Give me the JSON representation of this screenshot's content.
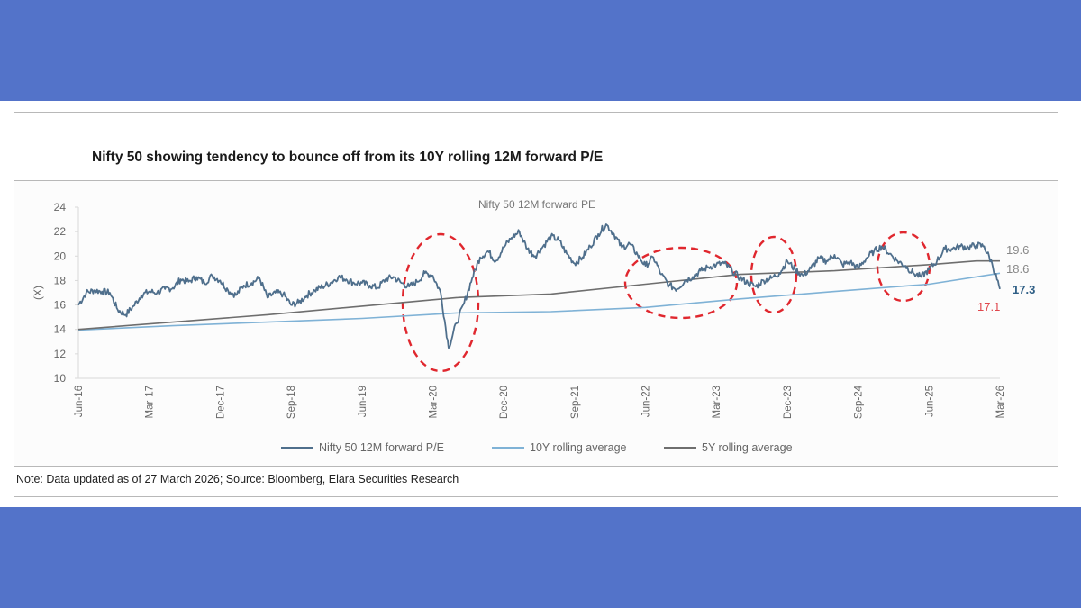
{
  "title": "Nifty 50 showing tendency to bounce off from its 10Y rolling 12M forward P/E",
  "note": "Note: Data updated as of 27 March 2026; Source: Bloomberg, Elara Securities Research",
  "colors": {
    "background": "#5373c9",
    "pe_line": "#4f6f8c",
    "avg10y": "#7fb2d6",
    "avg5y": "#6e6e6e",
    "highlight": "#e0272e",
    "end_label_pe": "#2f5f86",
    "end_label_min": "#e0474d"
  },
  "chart_data": {
    "type": "line",
    "title": "Nifty 50 12M forward PE",
    "xlabel": "",
    "ylabel": "(X)",
    "ylim": [
      10,
      24
    ],
    "yticks": [
      10,
      12,
      14,
      16,
      18,
      20,
      22,
      24
    ],
    "ytick_labels": [
      "10",
      "12",
      "14",
      "16",
      "18",
      "20",
      "22",
      "24"
    ],
    "x_tick_labels": [
      "Jun-16",
      "Mar-17",
      "Dec-17",
      "Sep-18",
      "Jun-19",
      "Mar-20",
      "Dec-20",
      "Sep-21",
      "Jun-22",
      "Mar-23",
      "Dec-23",
      "Sep-24",
      "Jun-25",
      "Mar-26"
    ],
    "x_range_months": [
      0,
      117
    ],
    "grid": false,
    "legend_position": "bottom",
    "series": [
      {
        "name": "Nifty 50 12M forward P/E",
        "x_months": [
          0,
          1,
          2,
          3,
          4,
          5,
          6,
          7,
          8,
          9,
          10,
          11,
          12,
          13,
          14,
          15,
          16,
          17,
          18,
          19,
          20,
          21,
          22,
          23,
          24,
          25,
          26,
          27,
          28,
          29,
          30,
          31,
          32,
          33,
          34,
          35,
          36,
          37,
          38,
          39,
          40,
          41,
          42,
          43,
          44,
          45,
          46,
          47,
          48,
          49,
          50,
          51,
          52,
          53,
          54,
          55,
          56,
          57,
          58,
          59,
          60,
          61,
          62,
          63,
          64,
          65,
          66,
          67,
          68,
          69,
          70,
          71,
          72,
          73,
          74,
          75,
          76,
          77,
          78,
          79,
          80,
          81,
          82,
          83,
          84,
          85,
          86,
          87,
          88,
          89,
          90,
          91,
          92,
          93,
          94,
          95,
          96,
          97,
          98,
          99,
          100,
          101,
          102,
          103,
          104,
          105,
          106,
          107,
          108,
          109,
          110,
          111,
          112,
          113,
          114,
          115,
          116,
          117
        ],
        "values": [
          16.0,
          17.0,
          17.2,
          17.1,
          17.0,
          15.6,
          15.2,
          15.9,
          16.8,
          17.1,
          17.0,
          17.3,
          17.4,
          18.1,
          17.9,
          18.3,
          17.8,
          18.4,
          18.0,
          17.2,
          16.8,
          17.6,
          17.8,
          18.2,
          16.6,
          17.0,
          16.9,
          16.0,
          16.2,
          16.8,
          17.2,
          17.5,
          17.8,
          18.3,
          18.1,
          17.8,
          17.8,
          17.6,
          17.4,
          18.1,
          18.3,
          17.8,
          17.5,
          17.9,
          18.6,
          18.4,
          17.0,
          12.5,
          14.5,
          16.2,
          18.2,
          19.9,
          20.4,
          19.6,
          20.7,
          21.5,
          22.0,
          20.6,
          20.0,
          20.8,
          21.6,
          21.3,
          20.2,
          19.4,
          19.9,
          20.8,
          21.8,
          22.6,
          21.8,
          20.7,
          21.0,
          20.1,
          19.2,
          19.9,
          18.5,
          17.6,
          17.3,
          18.0,
          18.3,
          18.8,
          19.1,
          19.3,
          19.4,
          18.8,
          18.2,
          17.8,
          17.5,
          18.0,
          18.2,
          18.6,
          19.6,
          18.9,
          18.4,
          19.0,
          19.8,
          19.6,
          20.1,
          19.3,
          19.5,
          19.0,
          19.8,
          20.4,
          20.8,
          20.2,
          19.6,
          19.2,
          18.6,
          18.3,
          18.9,
          19.6,
          20.6,
          20.6,
          20.8,
          20.7,
          20.9,
          20.8,
          19.4,
          17.3
        ]
      },
      {
        "name": "10Y rolling average",
        "x_months": [
          0,
          12,
          24,
          36,
          48,
          60,
          72,
          84,
          96,
          108,
          117
        ],
        "values": [
          13.95,
          14.3,
          14.6,
          14.9,
          15.35,
          15.45,
          15.8,
          16.5,
          17.1,
          17.7,
          18.6
        ]
      },
      {
        "name": "5Y rolling average",
        "x_months": [
          0,
          12,
          24,
          36,
          48,
          60,
          72,
          84,
          96,
          108,
          114,
          117
        ],
        "values": [
          14.0,
          14.6,
          15.2,
          15.9,
          16.6,
          16.9,
          17.7,
          18.5,
          18.8,
          19.3,
          19.6,
          19.6
        ]
      }
    ],
    "annotations": {
      "end_labels": [
        "19.6",
        "18.6",
        "17.3",
        "17.1"
      ],
      "highlight_ellipses": [
        "Mar-20 dip",
        "Jun-22 to Mar-23",
        "Dec-23",
        "early 2025"
      ]
    }
  },
  "legend": [
    {
      "label": "Nifty 50 12M forward P/E",
      "color": "#4f6f8c"
    },
    {
      "label": "10Y rolling average",
      "color": "#7fb2d6"
    },
    {
      "label": "5Y rolling average",
      "color": "#6e6e6e"
    }
  ]
}
